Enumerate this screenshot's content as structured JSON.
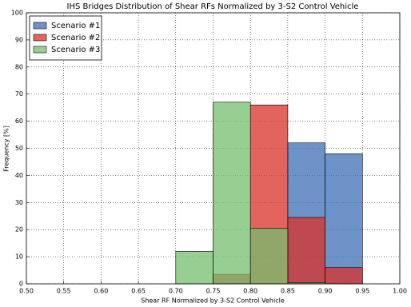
{
  "chart_data": {
    "type": "histogram",
    "title": "IHS Bridges Distribution of Shear RFs Normalized by 3-S2 Control Vehicle",
    "xlabel": "Shear RF Normalized by 3-S2 Control Vehicle",
    "ylabel": "Frequency [%]",
    "bins": [
      0.7,
      0.75,
      0.8,
      0.85,
      0.9,
      0.95
    ],
    "series": [
      {
        "name": "Scenario #1",
        "color": "#3d6fb6",
        "values": [
          0,
          0,
          0,
          52,
          48
        ]
      },
      {
        "name": "Scenario #2",
        "color": "#d9302a",
        "values": [
          0,
          3.5,
          66,
          24.5,
          6
        ]
      },
      {
        "name": "Scenario #3",
        "color": "#74bd6c",
        "values": [
          12,
          67,
          20.5,
          0.5,
          0
        ]
      }
    ],
    "xlim": [
      0.5,
      1.0
    ],
    "xticks": [
      {
        "value": 0.5,
        "label": "0.50"
      },
      {
        "value": 0.55,
        "label": "0.55"
      },
      {
        "value": 0.6,
        "label": "0.60"
      },
      {
        "value": 0.65,
        "label": "0.65"
      },
      {
        "value": 0.7,
        "label": "0.70"
      },
      {
        "value": 0.75,
        "label": "0.75"
      },
      {
        "value": 0.8,
        "label": "0.80"
      },
      {
        "value": 0.85,
        "label": "0.85"
      },
      {
        "value": 0.9,
        "label": "0.90"
      },
      {
        "value": 0.95,
        "label": "0.95"
      },
      {
        "value": 1.0,
        "label": "1.00"
      }
    ],
    "ylim": [
      0,
      100
    ],
    "yticks": [
      0,
      10,
      20,
      30,
      40,
      50,
      60,
      70,
      80,
      90,
      100
    ],
    "grid": true,
    "legend": "upper left"
  }
}
